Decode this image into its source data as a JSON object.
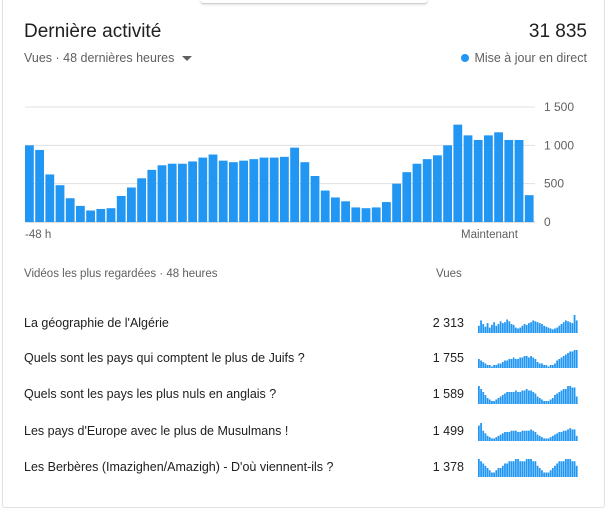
{
  "header": {
    "title": "Dernière activité",
    "total_views": "31 835",
    "filter_label": "Vues · 48 dernières heures",
    "live_label": "Mise à jour en direct"
  },
  "colors": {
    "accent": "#2196f3",
    "grid": "#e0e0e0"
  },
  "chart_data": {
    "type": "bar",
    "ylim": [
      0,
      1500
    ],
    "y_ticks": [
      "1 500",
      "1 000",
      "500",
      "0"
    ],
    "x_start_label": "-48 h",
    "x_end_label": "Maintenant",
    "values": [
      1000,
      940,
      620,
      480,
      310,
      210,
      150,
      170,
      180,
      340,
      450,
      570,
      680,
      740,
      760,
      760,
      790,
      840,
      880,
      800,
      780,
      800,
      820,
      840,
      840,
      850,
      970,
      780,
      600,
      410,
      320,
      270,
      190,
      180,
      190,
      260,
      500,
      650,
      760,
      820,
      870,
      1000,
      1270,
      1130,
      1070,
      1130,
      1170,
      1070,
      1070,
      350
    ]
  },
  "list": {
    "header": "Vidéos les plus regardées · 48 heures",
    "views_header": "Vues",
    "items": [
      {
        "title": "La géographie de l'Algérie",
        "views": "2 313",
        "spark": [
          8,
          14,
          10,
          7,
          11,
          6,
          9,
          12,
          8,
          10,
          13,
          11,
          12,
          15,
          13,
          10,
          9,
          6,
          5,
          6,
          8,
          10,
          9,
          11,
          12,
          14,
          13,
          12,
          11,
          10,
          8,
          7,
          6,
          5,
          4,
          5,
          6,
          8,
          10,
          12,
          14,
          13,
          12,
          11,
          20,
          14
        ]
      },
      {
        "title": "Quels sont les pays qui comptent le plus de Juifs ?",
        "views": "1 755",
        "spark": [
          6,
          5,
          4,
          3,
          2,
          2,
          1,
          2,
          2,
          3,
          3,
          4,
          5,
          5,
          6,
          6,
          7,
          6,
          6,
          7,
          7,
          8,
          8,
          7,
          8,
          7,
          6,
          4,
          3,
          3,
          2,
          2,
          1,
          2,
          2,
          3,
          5,
          6,
          7,
          8,
          9,
          10,
          11,
          11,
          12,
          12
        ]
      },
      {
        "title": "Quels sont les pays les plus nuls en anglais ?",
        "views": "1 589",
        "spark": [
          12,
          10,
          8,
          6,
          4,
          3,
          2,
          2,
          3,
          4,
          5,
          6,
          7,
          8,
          8,
          8,
          8,
          9,
          8,
          8,
          9,
          9,
          10,
          9,
          9,
          8,
          7,
          5,
          4,
          3,
          2,
          2,
          2,
          3,
          4,
          6,
          7,
          8,
          9,
          10,
          10,
          12,
          12,
          11,
          11,
          5
        ]
      },
      {
        "title": "Les pays d'Europe avec le plus de Musulmans !",
        "views": "1 499",
        "spark": [
          12,
          14,
          8,
          6,
          4,
          3,
          2,
          2,
          3,
          4,
          5,
          6,
          7,
          7,
          7,
          8,
          8,
          8,
          7,
          7,
          8,
          8,
          8,
          8,
          9,
          8,
          7,
          5,
          4,
          3,
          2,
          2,
          2,
          3,
          4,
          5,
          6,
          7,
          7,
          8,
          8,
          9,
          10,
          9,
          9,
          4
        ]
      },
      {
        "title": "Les Berbères (Imazighen/Amazigh) - D'où viennent-ils ?",
        "views": "1 378",
        "spark": [
          8,
          7,
          6,
          5,
          4,
          3,
          2,
          2,
          3,
          4,
          4,
          5,
          6,
          6,
          7,
          7,
          7,
          8,
          8,
          7,
          7,
          7,
          8,
          8,
          8,
          7,
          7,
          5,
          4,
          3,
          2,
          2,
          2,
          3,
          4,
          5,
          6,
          7,
          7,
          7,
          8,
          8,
          8,
          7,
          7,
          5
        ]
      }
    ]
  }
}
